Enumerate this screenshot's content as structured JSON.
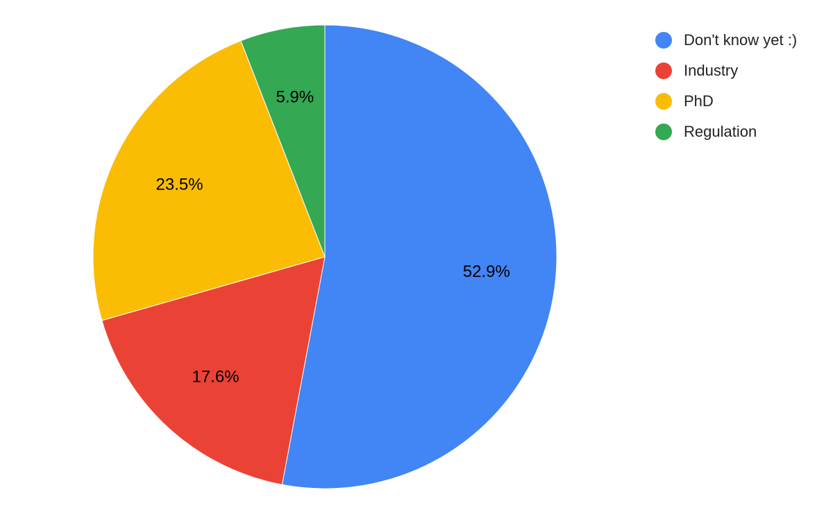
{
  "chart_data": {
    "type": "pie",
    "title": "",
    "categories": [
      "Don't know yet :)",
      "Industry",
      "PhD",
      "Regulation"
    ],
    "values": [
      52.9,
      17.6,
      23.5,
      5.9
    ],
    "value_labels": [
      "52.9%",
      "17.6%",
      "23.5%",
      "5.9%"
    ],
    "colors": [
      "#4285F4",
      "#EA4335",
      "#FBBC04",
      "#34A853"
    ],
    "start_angle": "12 o'clock",
    "direction": "clockwise",
    "legend_position": "right"
  }
}
